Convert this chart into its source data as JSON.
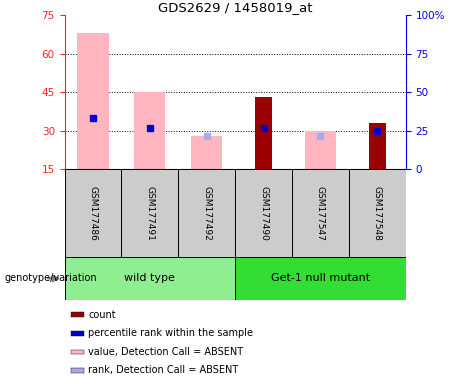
{
  "title": "GDS2629 / 1458019_at",
  "samples": [
    "GSM177486",
    "GSM177491",
    "GSM177492",
    "GSM177490",
    "GSM177547",
    "GSM177548"
  ],
  "groups": [
    {
      "name": "wild type",
      "indices": [
        0,
        1,
        2
      ],
      "color": "#90EE90"
    },
    {
      "name": "Get-1 null mutant",
      "indices": [
        3,
        4,
        5
      ],
      "color": "#33DD33"
    }
  ],
  "ylim_left": [
    15,
    75
  ],
  "ylim_right": [
    0,
    100
  ],
  "yticks_left": [
    15,
    30,
    45,
    60,
    75
  ],
  "yticks_right": [
    0,
    25,
    50,
    75,
    100
  ],
  "pink_bars": [
    68,
    45,
    28,
    0,
    30,
    0
  ],
  "pink_bar_color": "#FFB6C1",
  "dark_red_bars": [
    0,
    0,
    0,
    43,
    0,
    33
  ],
  "dark_red_color": "#9B0000",
  "blue_markers": [
    35,
    31,
    0,
    31,
    0,
    30
  ],
  "light_blue_markers": [
    0,
    0,
    28,
    0,
    28,
    0
  ],
  "blue_color": "#0000CD",
  "light_blue_color": "#AAAAEE",
  "left_tick_color": "#FF2222",
  "right_tick_color": "#0000EE",
  "legend_items": [
    {
      "label": "count",
      "color": "#9B0000"
    },
    {
      "label": "percentile rank within the sample",
      "color": "#0000CD"
    },
    {
      "label": "value, Detection Call = ABSENT",
      "color": "#FFB6C1"
    },
    {
      "label": "rank, Detection Call = ABSENT",
      "color": "#AAAAEE"
    }
  ],
  "bg_color": "#FFFFFF",
  "sample_box_color": "#CCCCCC",
  "genotype_label": "genotype/variation"
}
